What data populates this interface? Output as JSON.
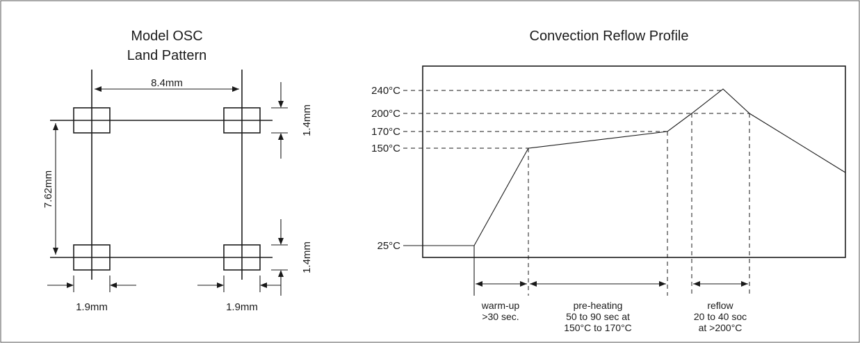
{
  "land_pattern": {
    "title_line1": "Model OSC",
    "title_line2": "Land Pattern",
    "dim_width": "8.4mm",
    "dim_height": "7.62mm",
    "dim_pad_top": "1.4mm",
    "dim_pad_bottom": "1.4mm",
    "dim_pad_left": "1.9mm",
    "dim_pad_right": "1.9mm"
  },
  "reflow": {
    "title": "Convection Reflow Profile",
    "temp_labels": [
      "240°C",
      "200°C",
      "170°C",
      "150°C",
      "25°C"
    ],
    "phases": [
      {
        "lines": [
          "warm-up",
          ">30 sec."
        ]
      },
      {
        "lines": [
          "pre-heating",
          "50 to 90 sec at",
          "150°C to 170°C"
        ]
      },
      {
        "lines": [
          "reflow",
          "20 to 40 soc",
          "at >200°C"
        ]
      }
    ]
  }
}
